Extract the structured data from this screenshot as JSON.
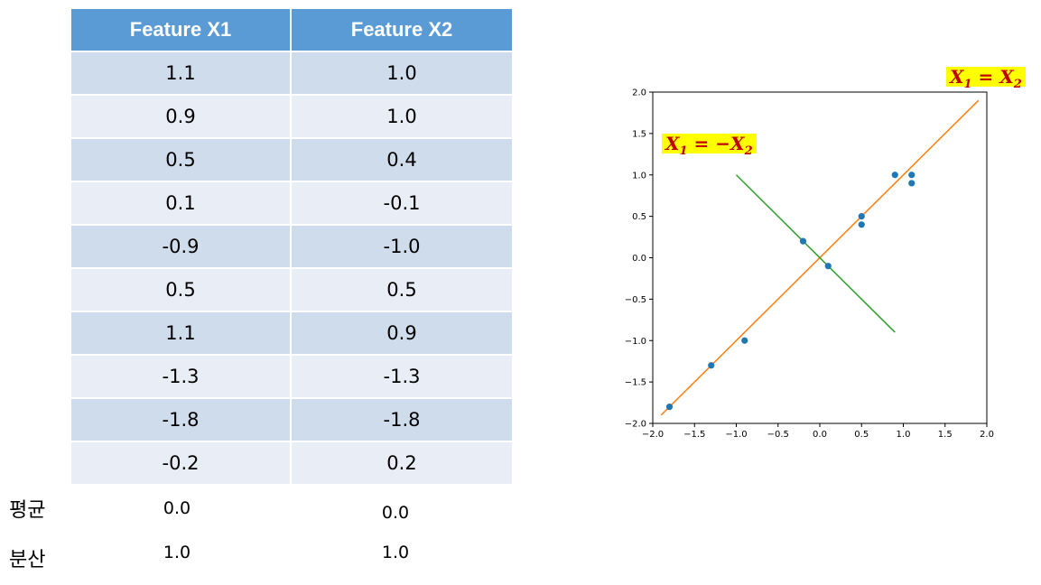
{
  "table": {
    "headers": [
      "Feature X1",
      "Feature X2"
    ],
    "rows": [
      [
        "1.1",
        "1.0"
      ],
      [
        "0.9",
        "1.0"
      ],
      [
        "0.5",
        "0.4"
      ],
      [
        "0.1",
        "-0.1"
      ],
      [
        "-0.9",
        "-1.0"
      ],
      [
        "0.5",
        "0.5"
      ],
      [
        "1.1",
        "0.9"
      ],
      [
        "-1.3",
        "-1.3"
      ],
      [
        "-1.8",
        "-1.8"
      ],
      [
        "-0.2",
        "0.2"
      ]
    ]
  },
  "stats": {
    "mean": {
      "label": "평균",
      "x1": "0.0",
      "x2": "0.0"
    },
    "variance": {
      "label": "분산",
      "x1": "1.0",
      "x2": "1.0"
    }
  },
  "chart_data": {
    "type": "scatter",
    "xlim": [
      -2.0,
      2.0
    ],
    "ylim": [
      -2.0,
      2.0
    ],
    "xticks": [
      -2.0,
      -1.5,
      -1.0,
      -0.5,
      0.0,
      0.5,
      1.0,
      1.5,
      2.0
    ],
    "yticks": [
      -2.0,
      -1.5,
      -1.0,
      -0.5,
      0.0,
      0.5,
      1.0,
      1.5,
      2.0
    ],
    "grid": false,
    "points": {
      "color": "#1f77b4",
      "x": [
        1.1,
        0.9,
        0.5,
        0.1,
        -0.9,
        0.5,
        1.1,
        -1.3,
        -1.8,
        -0.2
      ],
      "y": [
        1.0,
        1.0,
        0.4,
        -0.1,
        -1.0,
        0.5,
        0.9,
        -1.3,
        -1.8,
        0.2
      ]
    },
    "lines": [
      {
        "color": "#ff7f0e",
        "x": [
          -1.9,
          1.9
        ],
        "y": [
          -1.9,
          1.9
        ],
        "annotation": "X1 = X2"
      },
      {
        "color": "#2ca02c",
        "x": [
          -1.0,
          0.9
        ],
        "y": [
          1.0,
          -0.9
        ],
        "annotation": "X1 = −X2"
      }
    ]
  },
  "annotations": {
    "diag": {
      "lhs": "X",
      "lhs_sub": "1",
      "op": " = ",
      "rhs": "X",
      "rhs_sub": "2"
    },
    "anti": {
      "lhs": "X",
      "lhs_sub": "1",
      "op": " = −",
      "rhs": "X",
      "rhs_sub": "2"
    }
  }
}
